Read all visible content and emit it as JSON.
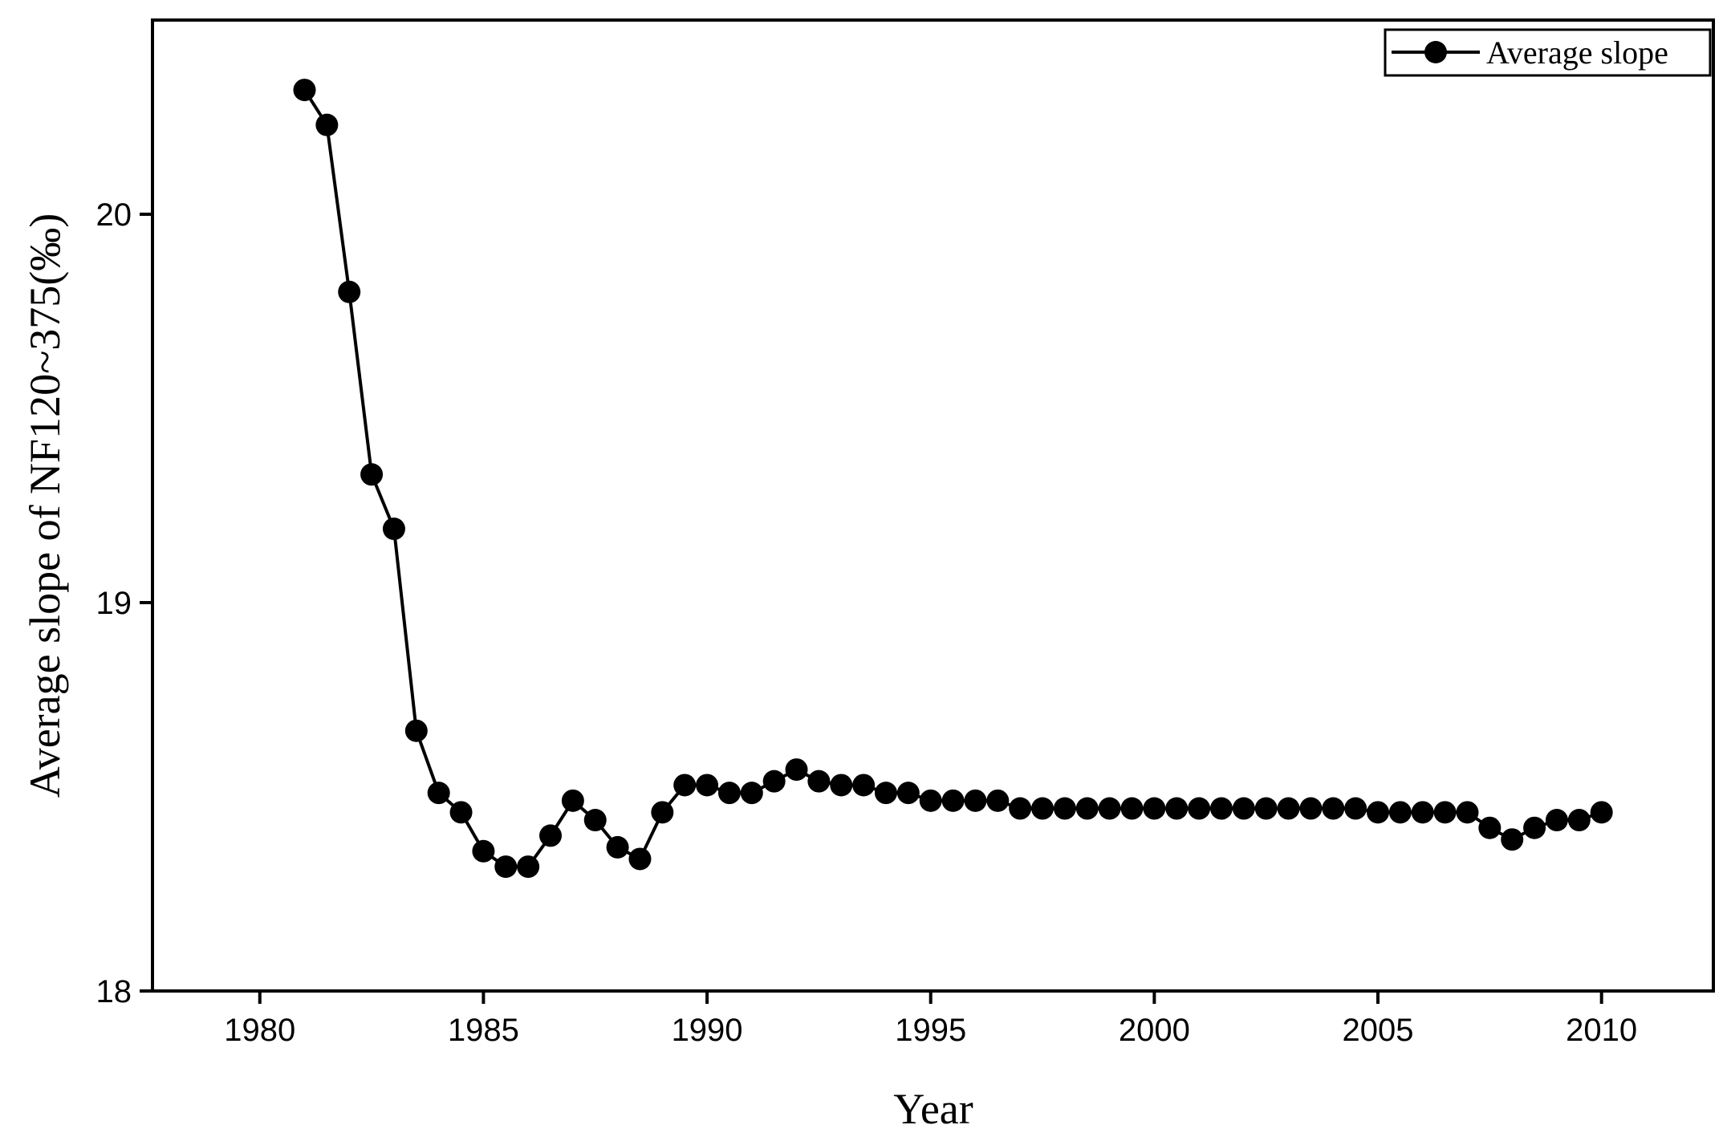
{
  "chart_data": {
    "type": "line",
    "xlabel": "Year",
    "ylabel": "Average slope of NF120~375(‰)",
    "x": [
      1981,
      1981.5,
      1982,
      1982.5,
      1983,
      1983.5,
      1984,
      1984.5,
      1985,
      1985.5,
      1986,
      1986.5,
      1987,
      1987.5,
      1988,
      1988.5,
      1989,
      1989.5,
      1990,
      1990.5,
      1991,
      1991.5,
      1992,
      1992.5,
      1993,
      1993.5,
      1994,
      1994.5,
      1995,
      1995.5,
      1996,
      1996.5,
      1997,
      1997.5,
      1998,
      1998.5,
      1999,
      1999.5,
      2000,
      2000.5,
      2001,
      2001.5,
      2002,
      2002.5,
      2003,
      2003.5,
      2004,
      2004.5,
      2005,
      2005.5,
      2006,
      2006.5,
      2007,
      2007.5,
      2008,
      2008.5,
      2009,
      2009.5,
      2010
    ],
    "series": [
      {
        "name": "Average slope",
        "color": "#000000",
        "values": [
          20.32,
          20.23,
          19.8,
          19.33,
          19.19,
          18.67,
          18.51,
          18.46,
          18.36,
          18.32,
          18.32,
          18.4,
          18.49,
          18.44,
          18.37,
          18.34,
          18.46,
          18.53,
          18.53,
          18.51,
          18.51,
          18.54,
          18.57,
          18.54,
          18.53,
          18.53,
          18.51,
          18.51,
          18.49,
          18.49,
          18.49,
          18.49,
          18.47,
          18.47,
          18.47,
          18.47,
          18.47,
          18.47,
          18.47,
          18.47,
          18.47,
          18.47,
          18.47,
          18.47,
          18.47,
          18.47,
          18.47,
          18.47,
          18.46,
          18.46,
          18.46,
          18.46,
          18.46,
          18.42,
          18.39,
          18.42,
          18.44,
          18.44,
          18.46
        ]
      }
    ],
    "xlim": [
      1977.6,
      2012.5
    ],
    "ylim": [
      18,
      20.5
    ],
    "xticks": [
      1980,
      1985,
      1990,
      1995,
      2000,
      2005,
      2010
    ],
    "yticks": [
      18,
      19,
      20
    ],
    "legend": "upper right"
  }
}
